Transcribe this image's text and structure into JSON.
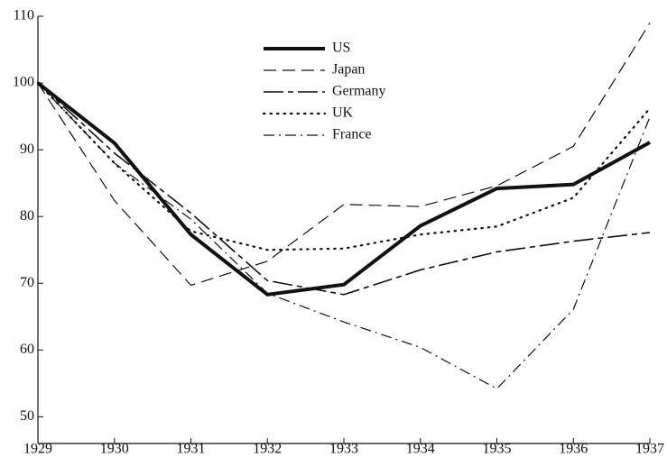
{
  "chart_data": {
    "type": "line",
    "x": [
      1929,
      1930,
      1931,
      1932,
      1933,
      1934,
      1935,
      1936,
      1937
    ],
    "xlim": [
      1929,
      1937
    ],
    "xticks": [
      1929,
      1930,
      1931,
      1932,
      1933,
      1934,
      1935,
      1936,
      1937
    ],
    "ylim": [
      46,
      110
    ],
    "yticks": [
      50,
      60,
      70,
      80,
      90,
      100,
      110
    ],
    "grid": false,
    "legend": "top-center",
    "series": [
      {
        "name": "US",
        "color": "#111111",
        "style": "solid",
        "width": 4,
        "values": [
          100,
          91,
          77.3,
          68.3,
          69.8,
          78.6,
          84.2,
          84.8,
          91.1
        ]
      },
      {
        "name": "Japan",
        "color": "#111111",
        "style": "dashed",
        "width": 1.2,
        "values": [
          100,
          82.4,
          69.7,
          73.3,
          81.8,
          81.5,
          84.6,
          90.5,
          109
        ]
      },
      {
        "name": "Germany",
        "color": "#111111",
        "style": "longdash",
        "width": 1.6,
        "values": [
          100,
          89.5,
          80.5,
          70.4,
          68.3,
          72,
          74.7,
          76.3,
          77.6
        ]
      },
      {
        "name": "UK",
        "color": "#111111",
        "style": "dotted",
        "width": 2.2,
        "values": [
          100,
          88,
          77.8,
          75,
          75.2,
          77.3,
          78.5,
          82.8,
          96.2
        ]
      },
      {
        "name": "France",
        "color": "#111111",
        "style": "dashdot",
        "width": 1.2,
        "values": [
          100,
          88,
          79.6,
          68.5,
          64.2,
          60.4,
          54.2,
          66.1,
          94.9
        ]
      }
    ]
  }
}
